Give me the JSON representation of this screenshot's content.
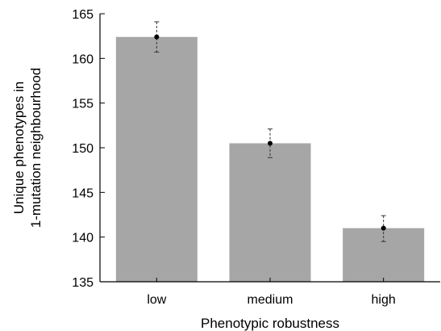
{
  "chart_data": {
    "type": "bar",
    "categories": [
      "low",
      "medium",
      "high"
    ],
    "values": [
      162.4,
      150.5,
      141.0
    ],
    "errors": [
      {
        "low": 160.7,
        "high": 164.1
      },
      {
        "low": 148.9,
        "high": 152.1
      },
      {
        "low": 139.5,
        "high": 142.4
      }
    ],
    "xlabel": "Phenotypic robustness",
    "ylabel_lines": [
      "Unique phenotypes in",
      "1-mutation neighbourhood"
    ],
    "ylim": [
      135,
      165
    ],
    "yticks": [
      135,
      140,
      145,
      150,
      155,
      160,
      165
    ],
    "grid": false,
    "colors": {
      "bar": "#a6a6a6",
      "point": "#000000"
    }
  }
}
